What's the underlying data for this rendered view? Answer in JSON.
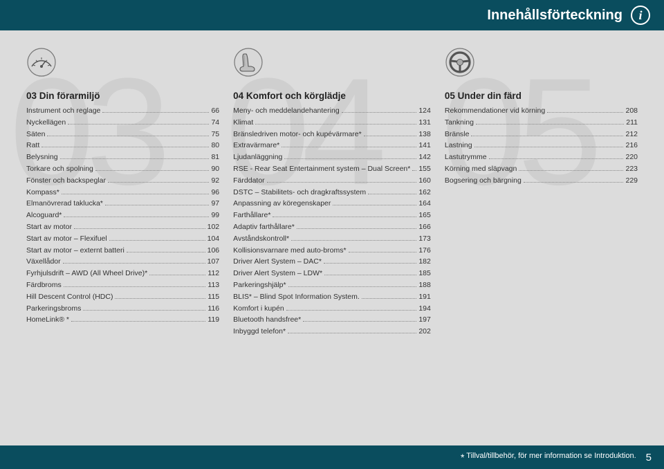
{
  "header_title": "Innehållsförteckning",
  "info_glyph": "i",
  "watermarks": {
    "c1": "03",
    "c2": "04",
    "c3": "05"
  },
  "col1": {
    "title": "03 Din förarmiljö",
    "items": [
      {
        "label": "Instrument och reglage",
        "page": "66"
      },
      {
        "label": "Nyckellägen",
        "page": "74"
      },
      {
        "label": "Säten",
        "page": "75"
      },
      {
        "label": "Ratt",
        "page": "80"
      },
      {
        "label": "Belysning",
        "page": "81"
      },
      {
        "label": "Torkare och spolning",
        "page": "90"
      },
      {
        "label": "Fönster och backspeglar",
        "page": "92"
      },
      {
        "label": "Kompass*",
        "page": "96"
      },
      {
        "label": "Elmanövrerad taklucka*",
        "page": "97"
      },
      {
        "label": "Alcoguard*",
        "page": "99"
      },
      {
        "label": "Start av motor",
        "page": "102"
      },
      {
        "label": "Start av motor – Flexifuel",
        "page": "104"
      },
      {
        "label": "Start av motor – externt batteri",
        "page": "106"
      },
      {
        "label": "Växellådor",
        "page": "107"
      },
      {
        "label": "Fyrhjulsdrift – AWD (All Wheel Drive)*",
        "page": "112"
      },
      {
        "label": "Färdbroms",
        "page": "113"
      },
      {
        "label": "Hill Descent Control (HDC)",
        "page": "115"
      },
      {
        "label": "Parkeringsbroms",
        "page": "116"
      },
      {
        "label": "HomeLink® *",
        "page": "119"
      }
    ]
  },
  "col2": {
    "title": "04 Komfort och körglädje",
    "items": [
      {
        "label": "Meny- och meddelandehantering",
        "page": "124"
      },
      {
        "label": "Klimat",
        "page": "131"
      },
      {
        "label": "Bränsledriven motor- och kupévärmare*",
        "page": "138"
      },
      {
        "label": "Extravärmare*",
        "page": "141"
      },
      {
        "label": "Ljudanläggning",
        "page": "142"
      },
      {
        "label": "RSE - Rear Seat Entertainment system – Dual Screen*",
        "page": "155"
      },
      {
        "label": "Färddator",
        "page": "160"
      },
      {
        "label": "DSTC – Stabilitets- och dragkraftssystem",
        "page": "162"
      },
      {
        "label": "Anpassning av köregenskaper",
        "page": "164"
      },
      {
        "label": "Farthållare*",
        "page": "165"
      },
      {
        "label": "Adaptiv farthållare*",
        "page": "166"
      },
      {
        "label": "Avståndskontroll*",
        "page": "173"
      },
      {
        "label": "Kollisionsvarnare med auto-broms*",
        "page": "176"
      },
      {
        "label": "Driver Alert System – DAC*",
        "page": "182"
      },
      {
        "label": "Driver Alert System – LDW*",
        "page": "185"
      },
      {
        "label": "Parkeringshjälp*",
        "page": "188"
      },
      {
        "label": "BLIS* – Blind Spot Information System.",
        "page": "191"
      },
      {
        "label": "Komfort i kupén",
        "page": "194"
      },
      {
        "label": "Bluetooth handsfree*",
        "page": "197"
      },
      {
        "label": "Inbyggd telefon*",
        "page": "202"
      }
    ]
  },
  "col3": {
    "title": "05 Under din färd",
    "items": [
      {
        "label": "Rekommendationer vid körning",
        "page": "208"
      },
      {
        "label": "Tankning",
        "page": "211"
      },
      {
        "label": "Bränsle",
        "page": "212"
      },
      {
        "label": "Lastning",
        "page": "216"
      },
      {
        "label": "Lastutrymme",
        "page": "220"
      },
      {
        "label": "Körning med släpvagn",
        "page": "223"
      },
      {
        "label": "Bogsering och bärgning",
        "page": "229"
      }
    ]
  },
  "footer_note": "Tillval/tillbehör, för mer information se Introduktion.",
  "footer_star": "*",
  "page_number": "5",
  "icons": {
    "dash_color": "#d8d8d8",
    "dash_border": "#777",
    "seat_color": "#bfbfbf",
    "seat_border": "#666",
    "wheel_color": "#aaa",
    "wheel_border": "#555"
  }
}
